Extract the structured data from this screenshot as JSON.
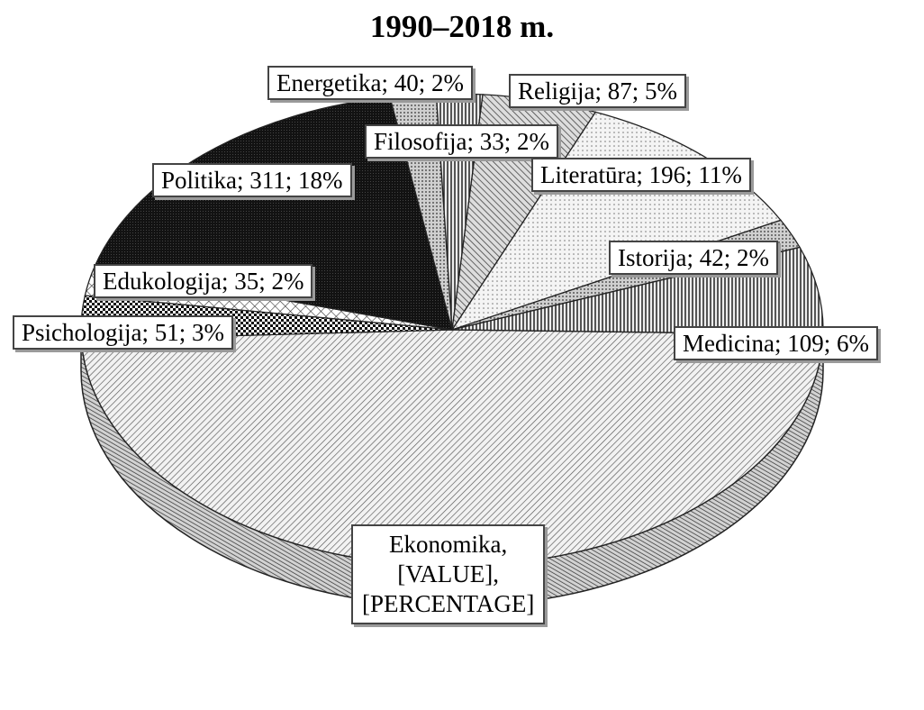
{
  "chart_data": {
    "type": "pie",
    "title": "1990–2018 m.",
    "slices": [
      {
        "name": "Ekonomika",
        "value": null,
        "percent": null,
        "label": "Ekonomika,\n[VALUE],\n[PERCENTAGE]",
        "pattern": "diag-fine"
      },
      {
        "name": "Psichologija",
        "value": 51,
        "percent": 3,
        "label": "Psichologija; 51; 3%",
        "pattern": "checker"
      },
      {
        "name": "Edukologija",
        "value": 35,
        "percent": 2,
        "label": "Edukologija; 35; 2%",
        "pattern": "diamond"
      },
      {
        "name": "Politika",
        "value": 311,
        "percent": 18,
        "label": "Politika; 311; 18%",
        "pattern": "solid-dark"
      },
      {
        "name": "Energetika",
        "value": 40,
        "percent": 2,
        "label": "Energetika; 40; 2%",
        "pattern": "dots"
      },
      {
        "name": "Filosofija",
        "value": 33,
        "percent": 2,
        "label": "Filosofija; 33; 2%",
        "pattern": "vertical"
      },
      {
        "name": "Religija",
        "value": 87,
        "percent": 5,
        "label": "Religija; 87; 5%",
        "pattern": "diag-coarse"
      },
      {
        "name": "Literatūra",
        "value": 196,
        "percent": 11,
        "label": "Literatūra; 196; 11%",
        "pattern": "light-dots"
      },
      {
        "name": "Istorija",
        "value": 42,
        "percent": 2,
        "label": "Istorija; 42; 2%",
        "pattern": "dots"
      },
      {
        "name": "Medicina",
        "value": 109,
        "percent": 6,
        "label": "Medicina; 109; 6%",
        "pattern": "vertical"
      }
    ]
  }
}
